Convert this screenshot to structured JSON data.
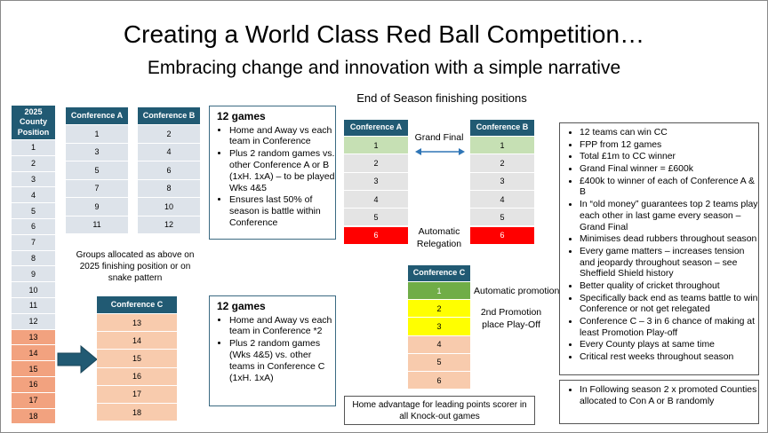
{
  "title": "Creating a World Class Red Ball Competition…",
  "subtitle": "Embracing change and innovation with a simple narrative",
  "county_table": {
    "header": "2025 County Position",
    "rows": [
      1,
      2,
      3,
      4,
      5,
      6,
      7,
      8,
      9,
      10,
      11,
      12,
      13,
      14,
      15,
      16,
      17,
      18
    ]
  },
  "conference_a": {
    "header": "Conference A",
    "rows": [
      1,
      3,
      5,
      7,
      9,
      11
    ]
  },
  "conference_b": {
    "header": "Conference  B",
    "rows": [
      2,
      4,
      6,
      8,
      10,
      12
    ]
  },
  "groups_note": "Groups allocated as above on 2025 finishing position or on snake pattern",
  "conference_c": {
    "header": "Conference C",
    "rows": [
      13,
      14,
      15,
      16,
      17,
      18
    ]
  },
  "games_box_ab": {
    "title": "12 games",
    "bullets": [
      "Home and Away vs each team in Conference",
      "Plus 2 random games vs. other Conference A or B (1xH. 1xA) – to be played Wks 4&5",
      "Ensures last 50% of season is battle within Conference"
    ]
  },
  "games_box_c": {
    "title": "12 games",
    "bullets": [
      "Home and Away vs each team in Conference *2",
      "Plus 2 random games (Wks 4&5)  vs. other teams in Conference C (1xH. 1xA)"
    ]
  },
  "end_of_season": {
    "heading": "End of Season finishing positions",
    "conference_a": {
      "header": "Conference A",
      "rows": [
        1,
        2,
        3,
        4,
        5,
        6
      ]
    },
    "conference_b": {
      "header": "Conference B",
      "rows": [
        1,
        2,
        3,
        4,
        5,
        6
      ]
    },
    "grand_final": "Grand Final",
    "relegation": "Automatic Relegation",
    "conference_c": {
      "header": "Conference C",
      "rows": [
        1,
        2,
        3,
        4,
        5,
        6
      ]
    },
    "promotion": "Automatic promotion",
    "playoff": "2nd Promotion place Play-Off",
    "home_advantage": "Home advantage for leading points scorer in all Knock-out games"
  },
  "benefits": [
    "12 teams can win CC",
    "FPP from 12 games",
    "Total £1m to CC winner",
    "Grand Final winner = £600k",
    "£400k to winner of each of Conference A & B",
    "In “old money” guarantees top 2 teams play each other in last game every season – Grand Final",
    "Minimises dead rubbers throughout season",
    "Every game matters – increases tension and jeopardy throughout season – see Sheffield Shield history",
    "Better quality of cricket throughout",
    "Specifically back end as teams battle to win Conference or not get relegated",
    "Conference C – 3 in 6 chance of making at least Promotion Play-off",
    "Every County plays at same time",
    "Critical rest weeks throughout season"
  ],
  "following_season": [
    "In Following season 2 x promoted Counties allocated to Con A or B randomly"
  ]
}
